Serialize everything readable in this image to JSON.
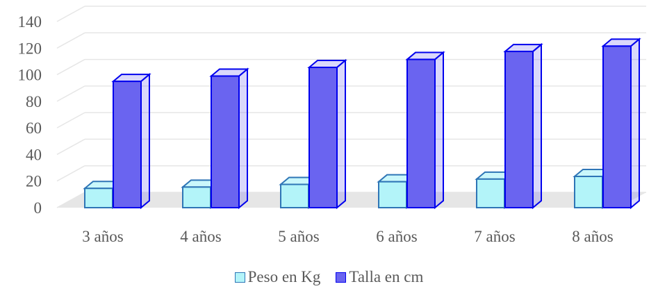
{
  "chart_data": {
    "type": "bar",
    "title": "",
    "xlabel": "",
    "ylabel": "",
    "categories": [
      "3 años",
      "4 años",
      "5 años",
      "6 años",
      "7 años",
      "8 años"
    ],
    "series": [
      {
        "name": "Peso en Kg",
        "values": [
          14.5,
          15.5,
          17.5,
          19.5,
          21.5,
          23.5
        ],
        "fill": "#b3f4f9",
        "stroke": "#2e75b6"
      },
      {
        "name": "Talla en cm",
        "values": [
          95,
          99,
          105.5,
          111.5,
          117.5,
          121.5
        ],
        "fill": "#6a64f0",
        "stroke": "#0000ee"
      }
    ],
    "yticks": [
      "0",
      "20",
      "40",
      "60",
      "80",
      "100",
      "120",
      "140"
    ],
    "ylim": [
      0,
      140
    ],
    "grid": true,
    "legend_position": "bottom",
    "style": "3d-column"
  }
}
